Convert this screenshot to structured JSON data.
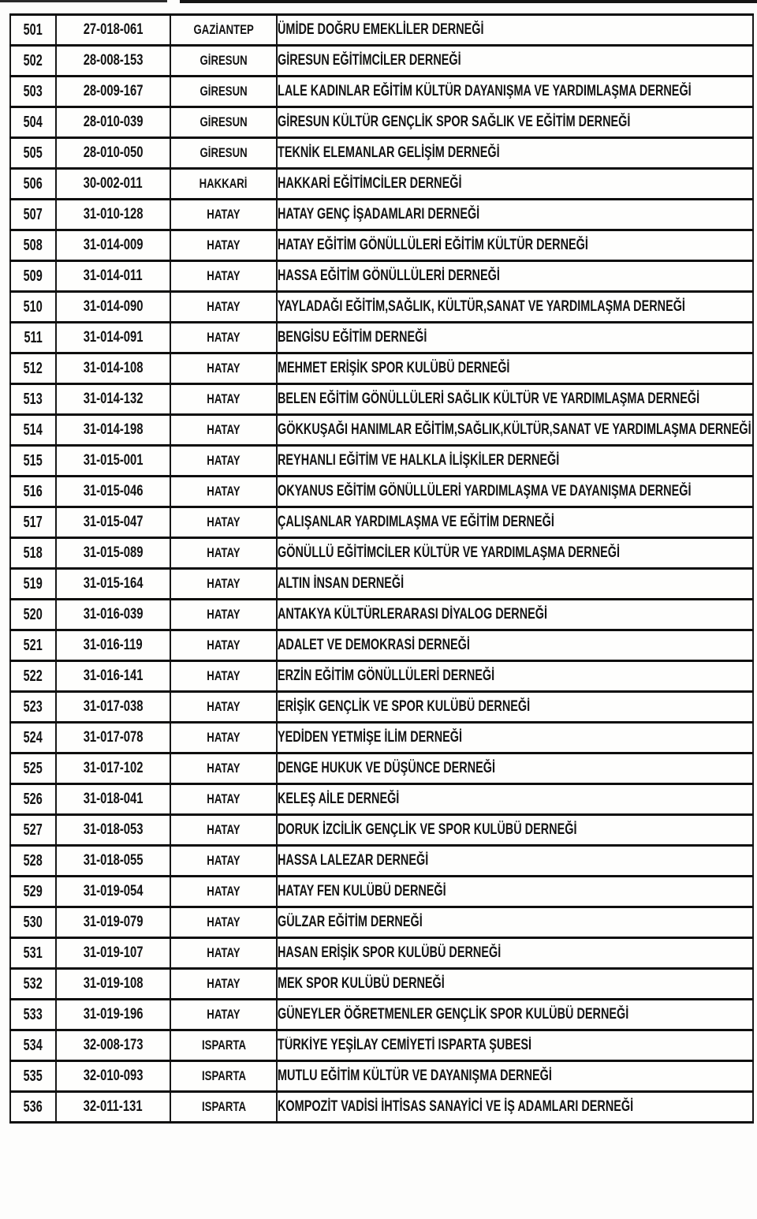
{
  "table": {
    "rows": [
      {
        "no": "501",
        "code": "27-018-061",
        "province": "GAZİANTEP",
        "name": "ÜMİDE DOĞRU EMEKLİLER DERNEĞİ"
      },
      {
        "no": "502",
        "code": "28-008-153",
        "province": "GİRESUN",
        "name": "GİRESUN EĞİTİMCİLER DERNEĞİ"
      },
      {
        "no": "503",
        "code": "28-009-167",
        "province": "GİRESUN",
        "name": "LALE KADINLAR EĞİTİM KÜLTÜR DAYANIŞMA VE YARDIMLAŞMA DERNEĞİ"
      },
      {
        "no": "504",
        "code": "28-010-039",
        "province": "GİRESUN",
        "name": "GİRESUN KÜLTÜR GENÇLİK SPOR SAĞLIK VE EĞİTİM DERNEĞİ"
      },
      {
        "no": "505",
        "code": "28-010-050",
        "province": "GİRESUN",
        "name": "TEKNİK ELEMANLAR GELİŞİM DERNEĞİ"
      },
      {
        "no": "506",
        "code": "30-002-011",
        "province": "HAKKARİ",
        "name": "HAKKARİ EĞİTİMCİLER DERNEĞİ"
      },
      {
        "no": "507",
        "code": "31-010-128",
        "province": "HATAY",
        "name": "HATAY GENÇ İŞADAMLARI DERNEĞİ"
      },
      {
        "no": "508",
        "code": "31-014-009",
        "province": "HATAY",
        "name": "HATAY EĞİTİM GÖNÜLLÜLERİ EĞİTİM KÜLTÜR DERNEĞİ"
      },
      {
        "no": "509",
        "code": "31-014-011",
        "province": "HATAY",
        "name": "HASSA EĞİTİM GÖNÜLLÜLERİ DERNEĞİ"
      },
      {
        "no": "510",
        "code": "31-014-090",
        "province": "HATAY",
        "name": "YAYLADAĞI EĞİTİM,SAĞLIK, KÜLTÜR,SANAT VE YARDIMLAŞMA DERNEĞİ"
      },
      {
        "no": "511",
        "code": "31-014-091",
        "province": "HATAY",
        "name": "BENGİSU EĞİTİM DERNEĞİ"
      },
      {
        "no": "512",
        "code": "31-014-108",
        "province": "HATAY",
        "name": "MEHMET ERİŞİK SPOR KULÜBÜ DERNEĞİ"
      },
      {
        "no": "513",
        "code": "31-014-132",
        "province": "HATAY",
        "name": "BELEN EĞİTİM GÖNÜLLÜLERİ SAĞLIK KÜLTÜR VE YARDIMLAŞMA DERNEĞİ"
      },
      {
        "no": "514",
        "code": "31-014-198",
        "province": "HATAY",
        "name": "GÖKKUŞAĞI HANIMLAR EĞİTİM,SAĞLIK,KÜLTÜR,SANAT VE YARDIMLAŞMA DERNEĞİ"
      },
      {
        "no": "515",
        "code": "31-015-001",
        "province": "HATAY",
        "name": "REYHANLI EĞİTİM VE HALKLA İLİŞKİLER DERNEĞİ"
      },
      {
        "no": "516",
        "code": "31-015-046",
        "province": "HATAY",
        "name": "OKYANUS EĞİTİM GÖNÜLLÜLERİ YARDIMLAŞMA VE DAYANIŞMA DERNEĞİ"
      },
      {
        "no": "517",
        "code": "31-015-047",
        "province": "HATAY",
        "name": "ÇALIŞANLAR YARDIMLAŞMA VE EĞİTİM DERNEĞİ"
      },
      {
        "no": "518",
        "code": "31-015-089",
        "province": "HATAY",
        "name": "GÖNÜLLÜ EĞİTİMCİLER KÜLTÜR VE YARDIMLAŞMA DERNEĞİ"
      },
      {
        "no": "519",
        "code": "31-015-164",
        "province": "HATAY",
        "name": "ALTIN İNSAN DERNEĞİ"
      },
      {
        "no": "520",
        "code": "31-016-039",
        "province": "HATAY",
        "name": "ANTAKYA KÜLTÜRLERARASI DİYALOG DERNEĞİ"
      },
      {
        "no": "521",
        "code": "31-016-119",
        "province": "HATAY",
        "name": "ADALET VE DEMOKRASİ DERNEĞİ"
      },
      {
        "no": "522",
        "code": "31-016-141",
        "province": "HATAY",
        "name": "ERZİN EĞİTİM GÖNÜLLÜLERİ DERNEĞİ"
      },
      {
        "no": "523",
        "code": "31-017-038",
        "province": "HATAY",
        "name": "ERİŞİK GENÇLİK VE SPOR KULÜBÜ DERNEĞİ"
      },
      {
        "no": "524",
        "code": "31-017-078",
        "province": "HATAY",
        "name": "YEDİDEN YETMİŞE İLİM DERNEĞİ"
      },
      {
        "no": "525",
        "code": "31-017-102",
        "province": "HATAY",
        "name": "DENGE HUKUK VE DÜŞÜNCE DERNEĞİ"
      },
      {
        "no": "526",
        "code": "31-018-041",
        "province": "HATAY",
        "name": "KELEŞ AİLE DERNEĞİ"
      },
      {
        "no": "527",
        "code": "31-018-053",
        "province": "HATAY",
        "name": "DORUK İZCİLİK GENÇLİK VE SPOR KULÜBÜ DERNEĞİ"
      },
      {
        "no": "528",
        "code": "31-018-055",
        "province": "HATAY",
        "name": "HASSA LALEZAR DERNEĞİ"
      },
      {
        "no": "529",
        "code": "31-019-054",
        "province": "HATAY",
        "name": "HATAY FEN KULÜBÜ DERNEĞİ"
      },
      {
        "no": "530",
        "code": "31-019-079",
        "province": "HATAY",
        "name": "GÜLZAR EĞİTİM DERNEĞİ"
      },
      {
        "no": "531",
        "code": "31-019-107",
        "province": "HATAY",
        "name": "HASAN ERİŞİK SPOR KULÜBÜ DERNEĞİ"
      },
      {
        "no": "532",
        "code": "31-019-108",
        "province": "HATAY",
        "name": "MEK SPOR KULÜBÜ DERNEĞİ"
      },
      {
        "no": "533",
        "code": "31-019-196",
        "province": "HATAY",
        "name": "GÜNEYLER ÖĞRETMENLER GENÇLİK SPOR KULÜBÜ DERNEĞİ"
      },
      {
        "no": "534",
        "code": "32-008-173",
        "province": "ISPARTA",
        "name": "TÜRKİYE YEŞİLAY CEMİYETİ ISPARTA ŞUBESİ"
      },
      {
        "no": "535",
        "code": "32-010-093",
        "province": "ISPARTA",
        "name": "MUTLU EĞİTİM KÜLTÜR VE DAYANIŞMA DERNEĞİ"
      },
      {
        "no": "536",
        "code": "32-011-131",
        "province": "ISPARTA",
        "name": "KOMPOZİT VADİSİ İHTİSAS SANAYİCİ VE İŞ ADAMLARI DERNEĞİ"
      }
    ]
  }
}
